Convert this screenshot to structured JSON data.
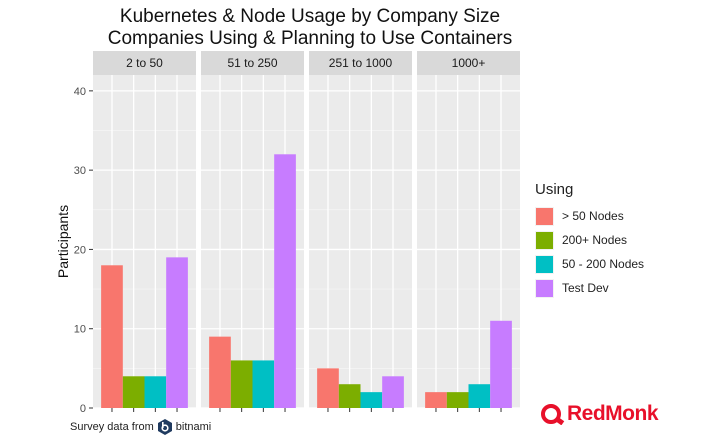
{
  "chart_data": {
    "type": "bar",
    "title": "Kubernetes & Node Usage by Company Size",
    "subtitle": "Companies Using & Planning to Use Containers",
    "ylabel": "Participants",
    "xlabel": "",
    "ylim": [
      0,
      42
    ],
    "yticks": [
      0,
      10,
      20,
      30,
      40
    ],
    "facets": [
      "2 to 50",
      "51 to 250",
      "251 to 1000",
      "1000+"
    ],
    "legend_title": "Using",
    "series": [
      {
        "name": "> 50 Nodes",
        "color": "#f8766d",
        "values": [
          18,
          9,
          5,
          2
        ]
      },
      {
        "name": "200+ Nodes",
        "color": "#7cae00",
        "values": [
          4,
          6,
          3,
          2
        ]
      },
      {
        "name": "50 - 200 Nodes",
        "color": "#00bfc4",
        "values": [
          4,
          6,
          2,
          3
        ]
      },
      {
        "name": "Test Dev",
        "color": "#c77cff",
        "values": [
          19,
          32,
          4,
          11
        ]
      }
    ]
  },
  "footer": {
    "source_text": "Survey data from",
    "source_brand": "bitnami",
    "logo_text": "RedMonk"
  }
}
